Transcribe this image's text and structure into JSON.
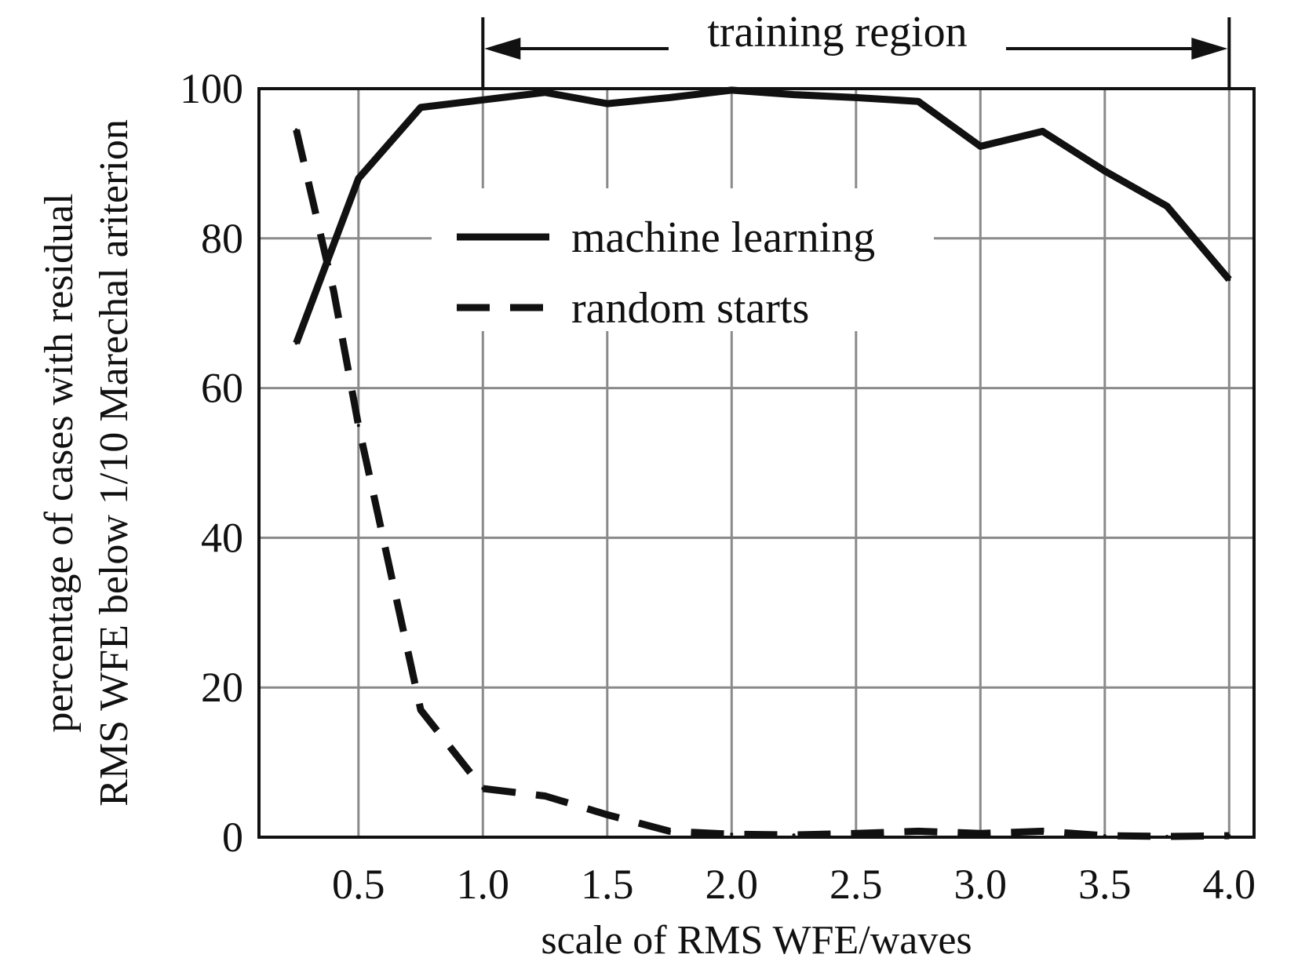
{
  "chart_data": {
    "type": "line",
    "title": "",
    "xlabel": "scale of RMS WFE/waves",
    "ylabel_lines": [
      "percentage of cases with residual",
      "RMS WFE below 1/10 Marechal ariterion"
    ],
    "xlim": [
      0.1,
      4.1
    ],
    "ylim": [
      0,
      100
    ],
    "x_ticks": [
      0.5,
      1.0,
      1.5,
      2.0,
      2.5,
      3.0,
      3.5,
      4.0
    ],
    "x_tick_labels": [
      "0.5",
      "1.0",
      "1.5",
      "2.0",
      "2.5",
      "3.0",
      "3.5",
      "4.0"
    ],
    "y_ticks": [
      0,
      20,
      40,
      60,
      80,
      100
    ],
    "y_tick_labels": [
      "0",
      "20",
      "40",
      "60",
      "80",
      "100"
    ],
    "grid": true,
    "legend_position": "upper-center",
    "annotation": {
      "text": "training region",
      "x_start": 1.0,
      "x_end": 4.0
    },
    "series": [
      {
        "name": "machine learning",
        "style": "solid",
        "color": "#111111",
        "points": [
          [
            0.25,
            66
          ],
          [
            0.5,
            88
          ],
          [
            0.75,
            97.5
          ],
          [
            1.0,
            98.5
          ],
          [
            1.25,
            99.5
          ],
          [
            1.5,
            98
          ],
          [
            1.75,
            98.8
          ],
          [
            2.0,
            99.8
          ],
          [
            2.25,
            99.2
          ],
          [
            2.5,
            98.8
          ],
          [
            2.75,
            98.3
          ],
          [
            3.0,
            92.3
          ],
          [
            3.25,
            94.3
          ],
          [
            3.5,
            89
          ],
          [
            3.75,
            84.3
          ],
          [
            4.0,
            74.5
          ]
        ]
      },
      {
        "name": "random starts",
        "style": "dashed",
        "color": "#111111",
        "points": [
          [
            0.25,
            94.5
          ],
          [
            0.4,
            73
          ],
          [
            0.5,
            55
          ],
          [
            0.75,
            17
          ],
          [
            1.0,
            6.5
          ],
          [
            1.25,
            5.5
          ],
          [
            1.5,
            3
          ],
          [
            1.75,
            0.8
          ],
          [
            2.0,
            0.4
          ],
          [
            2.25,
            0.3
          ],
          [
            2.5,
            0.5
          ],
          [
            2.75,
            0.8
          ],
          [
            3.0,
            0.5
          ],
          [
            3.25,
            0.8
          ],
          [
            3.5,
            0.2
          ],
          [
            3.75,
            0.1
          ],
          [
            4.0,
            0.2
          ]
        ]
      }
    ]
  }
}
